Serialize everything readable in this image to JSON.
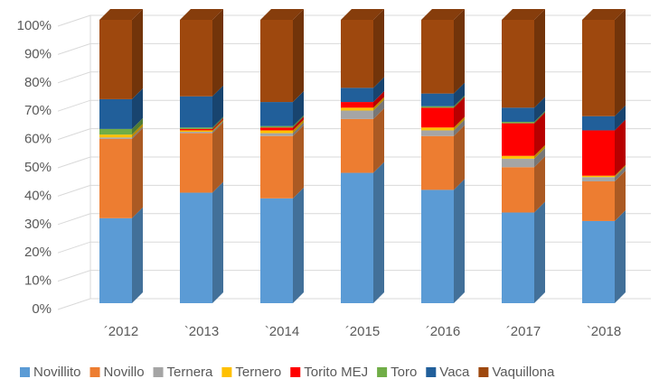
{
  "chart_data": {
    "type": "stacked-bar-3d",
    "categories": [
      "´2012",
      "`2013",
      "`2014",
      "´2015",
      "´2016",
      "´2017",
      "`2018"
    ],
    "series": [
      {
        "name": "Novillito",
        "color": "#5b9bd5",
        "values": [
          30,
          39,
          37,
          46,
          40,
          32,
          29
        ]
      },
      {
        "name": "Novillo",
        "color": "#ed7d31",
        "values": [
          28,
          21,
          22,
          19,
          19,
          16,
          14
        ]
      },
      {
        "name": "Ternera",
        "color": "#a5a5a5",
        "values": [
          0.5,
          0.5,
          1,
          3,
          2,
          3,
          1.5
        ]
      },
      {
        "name": "Ternero",
        "color": "#ffc000",
        "values": [
          1,
          0.5,
          1,
          1,
          1,
          1,
          0.5
        ]
      },
      {
        "name": "Torito MEJ",
        "color": "#ff0000",
        "values": [
          0,
          0.5,
          1,
          2,
          7,
          11.5,
          16
        ]
      },
      {
        "name": "Toro",
        "color": "#70ad47",
        "values": [
          2,
          0.5,
          0.5,
          0,
          0.5,
          0.5,
          0
        ]
      },
      {
        "name": "Vaca",
        "color": "#215f9a",
        "values": [
          10.5,
          11,
          8.5,
          5,
          4.5,
          5,
          5
        ]
      },
      {
        "name": "Vaquillona",
        "color": "#9e480e",
        "values": [
          28,
          27,
          29,
          24,
          26,
          31,
          34
        ]
      }
    ],
    "ylim": [
      0,
      100
    ],
    "yticks": [
      {
        "value": 0,
        "label": "0%"
      },
      {
        "value": 10,
        "label": "10%"
      },
      {
        "value": 20,
        "label": "20%"
      },
      {
        "value": 30,
        "label": "30%"
      },
      {
        "value": 40,
        "label": "40%"
      },
      {
        "value": 50,
        "label": "50%"
      },
      {
        "value": 60,
        "label": "60%"
      },
      {
        "value": 70,
        "label": "70%"
      },
      {
        "value": 80,
        "label": "80%"
      },
      {
        "value": 90,
        "label": "90%"
      },
      {
        "value": 100,
        "label": "100%"
      }
    ],
    "grid": true,
    "legend": "bottom"
  }
}
